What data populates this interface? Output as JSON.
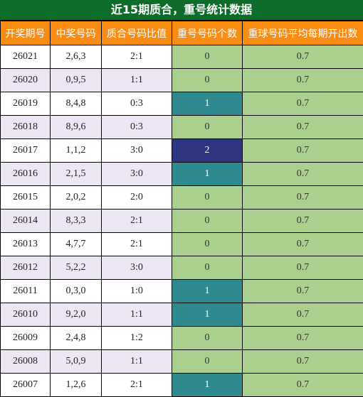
{
  "title": "近15期质合，重号统计数据",
  "headers": [
    "开奖期号",
    "中奖号码",
    "质合号码比值",
    "重号号码个数",
    "重球号码平均每期开出数"
  ],
  "rows": [
    {
      "period": "26021",
      "numbers": "2,6,3",
      "ratio": "2:1",
      "repeat": "0",
      "avg": "0.7"
    },
    {
      "period": "26020",
      "numbers": "0,9,5",
      "ratio": "1:1",
      "repeat": "0",
      "avg": "0.7"
    },
    {
      "period": "26019",
      "numbers": "8,4,8",
      "ratio": "0:3",
      "repeat": "1",
      "avg": "0.7"
    },
    {
      "period": "26018",
      "numbers": "8,9,6",
      "ratio": "0:3",
      "repeat": "0",
      "avg": "0.7"
    },
    {
      "period": "26017",
      "numbers": "1,1,2",
      "ratio": "3:0",
      "repeat": "2",
      "avg": "0.7"
    },
    {
      "period": "26016",
      "numbers": "2,1,5",
      "ratio": "3:0",
      "repeat": "1",
      "avg": "0.7"
    },
    {
      "period": "26015",
      "numbers": "2,0,2",
      "ratio": "2:0",
      "repeat": "0",
      "avg": "0.7"
    },
    {
      "period": "26014",
      "numbers": "8,3,3",
      "ratio": "2:1",
      "repeat": "0",
      "avg": "0.7"
    },
    {
      "period": "26013",
      "numbers": "4,7,7",
      "ratio": "2:1",
      "repeat": "0",
      "avg": "0.7"
    },
    {
      "period": "26012",
      "numbers": "5,2,2",
      "ratio": "3:0",
      "repeat": "0",
      "avg": "0.7"
    },
    {
      "period": "26011",
      "numbers": "0,3,0",
      "ratio": "1:0",
      "repeat": "1",
      "avg": "0.7"
    },
    {
      "period": "26010",
      "numbers": "9,2,0",
      "ratio": "1:1",
      "repeat": "1",
      "avg": "0.7"
    },
    {
      "period": "26009",
      "numbers": "2,4,8",
      "ratio": "1:2",
      "repeat": "0",
      "avg": "0.7"
    },
    {
      "period": "26008",
      "numbers": "5,0,9",
      "ratio": "1:1",
      "repeat": "0",
      "avg": "0.7"
    },
    {
      "period": "26007",
      "numbers": "1,2,6",
      "ratio": "2:1",
      "repeat": "1",
      "avg": "0.7"
    }
  ],
  "colors": {
    "title_bg": "#0e6c2a",
    "header_bg": "#f98c13",
    "green_cell": "#a9d08e",
    "repeat_one": "#2e8a8e",
    "repeat_two": "#2e3580",
    "row_alt": "#ede7f5"
  }
}
